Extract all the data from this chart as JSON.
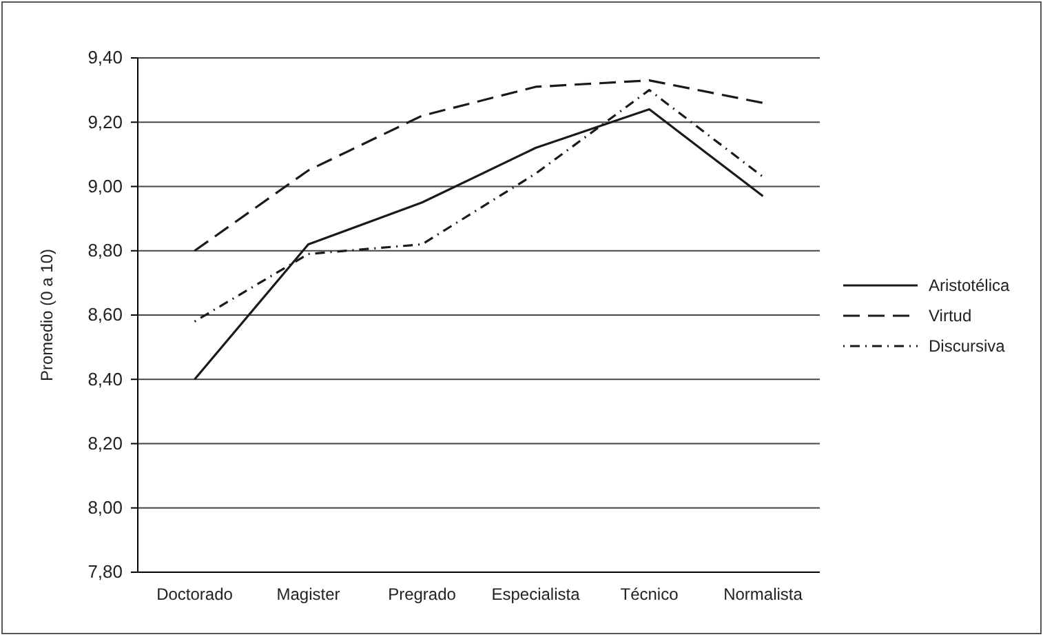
{
  "chart_data": {
    "type": "line",
    "ylabel": "Promedio (0 a 10)",
    "categories": [
      "Doctorado",
      "Magister",
      "Pregrado",
      "Especialista",
      "Técnico",
      "Normalista"
    ],
    "series": [
      {
        "name": "Aristotélica",
        "color": "#1a1a1a",
        "line_style": "solid",
        "values": [
          8.4,
          8.82,
          8.95,
          9.12,
          9.24,
          8.97
        ]
      },
      {
        "name": "Virtud",
        "color": "#1a1a1a",
        "line_style": "dashed",
        "values": [
          8.8,
          9.05,
          9.22,
          9.31,
          9.33,
          9.26
        ]
      },
      {
        "name": "Discursiva",
        "color": "#1a1a1a",
        "line_style": "dotted",
        "values": [
          8.58,
          8.79,
          8.82,
          9.04,
          9.3,
          9.03
        ]
      }
    ],
    "ylim": [
      7.8,
      9.4
    ],
    "yticks": [
      {
        "value": 7.8,
        "label": "7,80"
      },
      {
        "value": 8.0,
        "label": "8,00"
      },
      {
        "value": 8.2,
        "label": "8,20"
      },
      {
        "value": 8.4,
        "label": "8,40"
      },
      {
        "value": 8.6,
        "label": "8,60"
      },
      {
        "value": 8.8,
        "label": "8,80"
      },
      {
        "value": 9.0,
        "label": "9,00"
      },
      {
        "value": 9.2,
        "label": "9,20"
      },
      {
        "value": 9.4,
        "label": "9,40"
      }
    ],
    "grid": "y",
    "legend": "right",
    "marker": "none"
  }
}
